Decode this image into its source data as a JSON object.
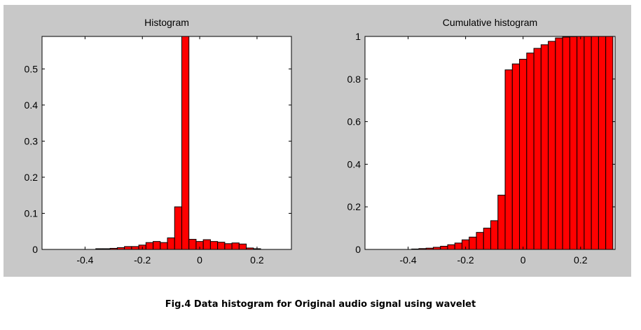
{
  "chart_data": [
    {
      "type": "bar",
      "title": "Histogram",
      "xlabel": "",
      "ylabel": "",
      "xlim": [
        -0.55,
        0.32
      ],
      "ylim": [
        0,
        0.59
      ],
      "xticks": [
        -0.4,
        -0.2,
        0,
        0.2
      ],
      "xtick_labels": [
        "-0.4",
        "-0.2",
        "0",
        "0.2"
      ],
      "yticks": [
        0,
        0.1,
        0.2,
        0.3,
        0.4,
        0.5
      ],
      "ytick_labels": [
        "0",
        "0.1",
        "0.2",
        "0.3",
        "0.4",
        "0.5"
      ],
      "bin_width": 0.025,
      "x": [
        -0.35,
        -0.325,
        -0.3,
        -0.275,
        -0.25,
        -0.225,
        -0.2,
        -0.175,
        -0.15,
        -0.125,
        -0.1,
        -0.075,
        -0.05,
        -0.025,
        0.0,
        0.025,
        0.05,
        0.075,
        0.1,
        0.125,
        0.15,
        0.175,
        0.2
      ],
      "values": [
        0.002,
        0.002,
        0.003,
        0.005,
        0.008,
        0.008,
        0.012,
        0.019,
        0.022,
        0.019,
        0.032,
        0.118,
        0.59,
        0.028,
        0.022,
        0.027,
        0.022,
        0.02,
        0.016,
        0.018,
        0.015,
        0.004,
        0.002
      ],
      "color": "#ff0000",
      "grid": false
    },
    {
      "type": "bar",
      "title": "Cumulative histogram",
      "xlabel": "",
      "ylabel": "",
      "xlim": [
        -0.55,
        0.32
      ],
      "ylim": [
        0,
        1.0
      ],
      "xticks": [
        -0.4,
        -0.2,
        0,
        0.2
      ],
      "xtick_labels": [
        "-0.4",
        "-0.2",
        "0",
        "0.2"
      ],
      "yticks": [
        0,
        0.2,
        0.4,
        0.6,
        0.8,
        1
      ],
      "ytick_labels": [
        "0",
        "0.2",
        "0.4",
        "0.6",
        "0.8",
        "1"
      ],
      "bin_width": 0.025,
      "x": [
        -0.375,
        -0.35,
        -0.325,
        -0.3,
        -0.275,
        -0.25,
        -0.225,
        -0.2,
        -0.175,
        -0.15,
        -0.125,
        -0.1,
        -0.075,
        -0.05,
        -0.025,
        0.0,
        0.025,
        0.05,
        0.075,
        0.1,
        0.125,
        0.15,
        0.175,
        0.2,
        0.225,
        0.25,
        0.275,
        0.3
      ],
      "values": [
        0.002,
        0.004,
        0.006,
        0.01,
        0.015,
        0.022,
        0.03,
        0.045,
        0.058,
        0.08,
        0.1,
        0.135,
        0.255,
        0.843,
        0.871,
        0.893,
        0.922,
        0.944,
        0.961,
        0.977,
        0.993,
        0.997,
        0.999,
        1.0,
        1.0,
        1.0,
        1.0,
        1.0
      ],
      "color": "#ff0000",
      "grid": false
    }
  ],
  "caption": "Fig.4 Data histogram for Original audio signal using wavelet"
}
